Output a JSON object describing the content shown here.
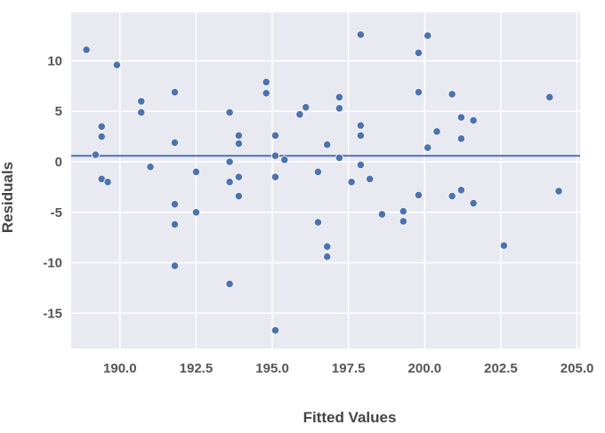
{
  "chart_data": {
    "type": "scatter",
    "title": "",
    "xlabel": "Fitted Values",
    "ylabel": "Residuals",
    "xlim": [
      188.4,
      205.1
    ],
    "ylim": [
      -18.5,
      14.8
    ],
    "xticks": [
      190.0,
      192.5,
      195.0,
      197.5,
      200.0,
      202.5,
      205.0
    ],
    "xtick_labels": [
      "190.0",
      "192.5",
      "195.0",
      "197.5",
      "200.0",
      "202.5",
      "205.0"
    ],
    "yticks": [
      10,
      5,
      0,
      -5,
      -10,
      -15
    ],
    "ytick_labels": [
      "10",
      "5",
      "0",
      "-5",
      "-10",
      "-15"
    ],
    "grid": true,
    "reference_line": {
      "y": 0.6
    },
    "colors": {
      "background": "#e9e9f2",
      "grid": "#ffffff",
      "point": "#4c72b0",
      "line": "#4c72b0"
    },
    "points": [
      {
        "x": 188.9,
        "y": 11.1
      },
      {
        "x": 189.2,
        "y": 0.7
      },
      {
        "x": 189.4,
        "y": 3.5
      },
      {
        "x": 189.4,
        "y": 2.5
      },
      {
        "x": 189.4,
        "y": -1.7
      },
      {
        "x": 189.6,
        "y": -2.0
      },
      {
        "x": 189.9,
        "y": 9.6
      },
      {
        "x": 190.7,
        "y": 6.0
      },
      {
        "x": 190.7,
        "y": 4.9
      },
      {
        "x": 191.0,
        "y": -0.5
      },
      {
        "x": 191.8,
        "y": 6.9
      },
      {
        "x": 191.8,
        "y": 1.9
      },
      {
        "x": 191.8,
        "y": -4.2
      },
      {
        "x": 191.8,
        "y": -6.2
      },
      {
        "x": 191.8,
        "y": -10.3
      },
      {
        "x": 192.5,
        "y": -1.0
      },
      {
        "x": 192.5,
        "y": -5.0
      },
      {
        "x": 193.6,
        "y": 4.9
      },
      {
        "x": 193.6,
        "y": 0.0
      },
      {
        "x": 193.6,
        "y": -2.0
      },
      {
        "x": 193.6,
        "y": -12.1
      },
      {
        "x": 193.9,
        "y": 2.6
      },
      {
        "x": 193.9,
        "y": 1.8
      },
      {
        "x": 193.9,
        "y": -1.5
      },
      {
        "x": 193.9,
        "y": -3.4
      },
      {
        "x": 194.8,
        "y": 7.9
      },
      {
        "x": 194.8,
        "y": 6.8
      },
      {
        "x": 195.1,
        "y": 2.6
      },
      {
        "x": 195.1,
        "y": 0.6
      },
      {
        "x": 195.1,
        "y": -1.5
      },
      {
        "x": 195.1,
        "y": -16.7
      },
      {
        "x": 195.4,
        "y": 0.2
      },
      {
        "x": 195.9,
        "y": 4.7
      },
      {
        "x": 196.1,
        "y": 5.4
      },
      {
        "x": 196.5,
        "y": -1.0
      },
      {
        "x": 196.5,
        "y": -6.0
      },
      {
        "x": 196.8,
        "y": 1.7
      },
      {
        "x": 196.8,
        "y": -8.4
      },
      {
        "x": 196.8,
        "y": -9.4
      },
      {
        "x": 197.2,
        "y": 6.4
      },
      {
        "x": 197.2,
        "y": 5.3
      },
      {
        "x": 197.2,
        "y": 0.4
      },
      {
        "x": 197.6,
        "y": -2.0
      },
      {
        "x": 197.9,
        "y": 12.6
      },
      {
        "x": 197.9,
        "y": 3.6
      },
      {
        "x": 197.9,
        "y": 2.6
      },
      {
        "x": 197.9,
        "y": -0.3
      },
      {
        "x": 198.2,
        "y": -1.7
      },
      {
        "x": 198.6,
        "y": -5.2
      },
      {
        "x": 199.3,
        "y": -4.9
      },
      {
        "x": 199.3,
        "y": -5.9
      },
      {
        "x": 199.8,
        "y": 10.8
      },
      {
        "x": 199.8,
        "y": 6.9
      },
      {
        "x": 199.8,
        "y": -3.3
      },
      {
        "x": 200.1,
        "y": 12.5
      },
      {
        "x": 200.1,
        "y": 1.4
      },
      {
        "x": 200.4,
        "y": 3.0
      },
      {
        "x": 200.9,
        "y": 6.7
      },
      {
        "x": 200.9,
        "y": -3.4
      },
      {
        "x": 201.2,
        "y": 4.4
      },
      {
        "x": 201.2,
        "y": 2.3
      },
      {
        "x": 201.2,
        "y": -2.8
      },
      {
        "x": 201.6,
        "y": 4.1
      },
      {
        "x": 201.6,
        "y": -4.1
      },
      {
        "x": 202.6,
        "y": -8.3
      },
      {
        "x": 204.1,
        "y": 6.4
      },
      {
        "x": 204.4,
        "y": -2.9
      }
    ]
  }
}
